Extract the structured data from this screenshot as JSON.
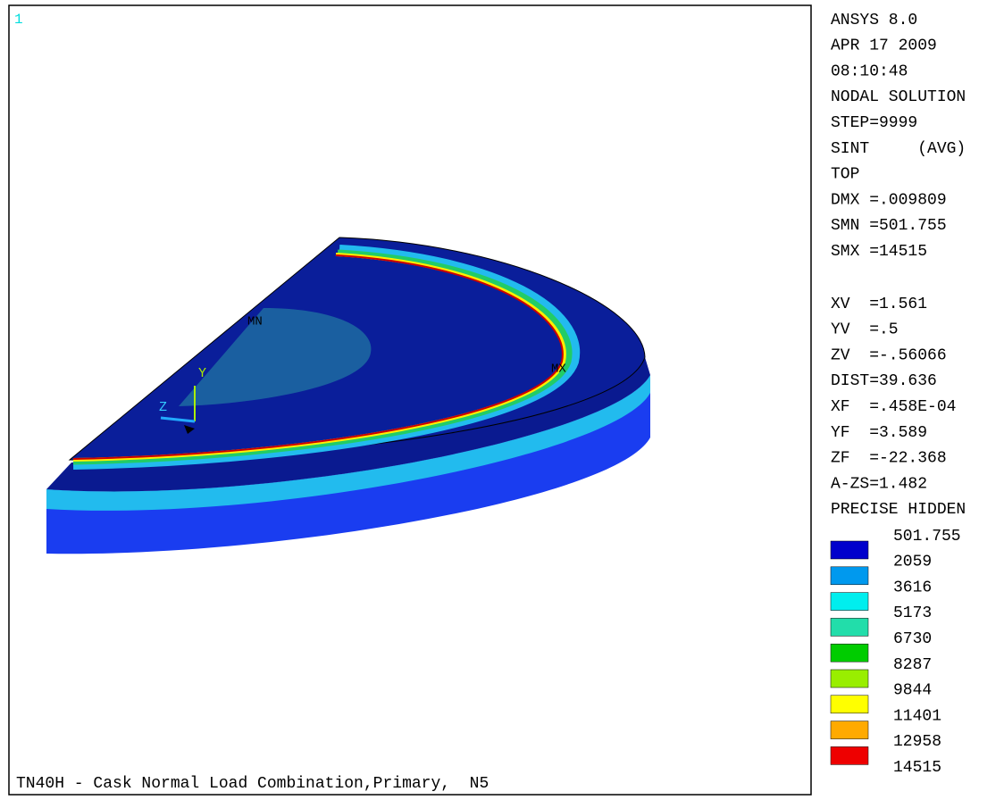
{
  "window_number": "1",
  "info": {
    "header": [
      "ANSYS 8.0",
      "APR 17 2009",
      "08:10:48",
      "NODAL SOLUTION",
      "STEP=9999",
      "SINT     (AVG)",
      "TOP",
      "DMX =.009809",
      "SMN =501.755",
      "SMX =14515"
    ],
    "view": [
      "XV  =1.561",
      "YV  =.5",
      "ZV  =-.56066",
      "DIST=39.636",
      "XF  =.458E-04",
      "YF  =3.589",
      "ZF  =-22.368",
      "A-ZS=1.482",
      "PRECISE HIDDEN"
    ]
  },
  "legend": [
    {
      "value": 501.755,
      "color": "#0000cc"
    },
    {
      "value": 2059,
      "color": "#0099ee"
    },
    {
      "value": 3616,
      "color": "#00eeee"
    },
    {
      "value": 5173,
      "color": "#22ddaa"
    },
    {
      "value": 6730,
      "color": "#00cc00"
    },
    {
      "value": 8287,
      "color": "#99ee00"
    },
    {
      "value": 9844,
      "color": "#ffff00"
    },
    {
      "value": 11401,
      "color": "#ffaa00"
    },
    {
      "value": 12958,
      "color": "#ee0000"
    }
  ],
  "legend_top_label": 14515,
  "model_labels": {
    "min": "MN",
    "max": "MX",
    "axis_y": "Y",
    "axis_z": "Z"
  },
  "footer": "TN40H - Cask Normal Load Combination,Primary,  N5"
}
